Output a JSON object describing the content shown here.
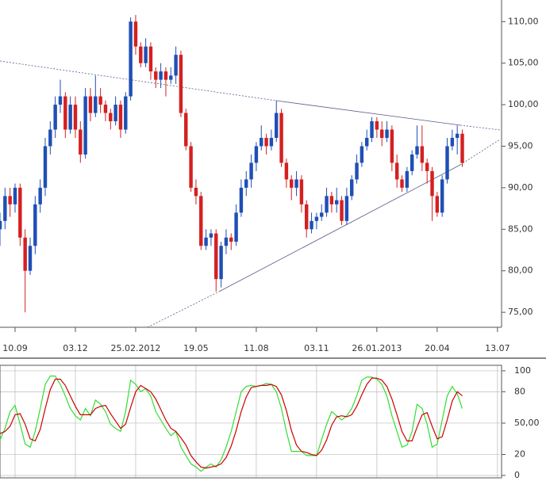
{
  "chart_data": [
    {
      "type": "candlestick",
      "up_color": "#1f4fb5",
      "down_color": "#d42020",
      "xlim": [
        0,
        99.5
      ],
      "xticks": [
        {
          "value": 3,
          "label": "10.09"
        },
        {
          "value": 15,
          "label": "03.12"
        },
        {
          "value": 27,
          "label": "25.02.2012"
        },
        {
          "value": 39,
          "label": "19.05"
        },
        {
          "value": 51,
          "label": "11.08"
        },
        {
          "value": 63,
          "label": "03.11"
        },
        {
          "value": 75,
          "label": "26.01.2013"
        },
        {
          "value": 87,
          "label": "20.04"
        },
        {
          "value": 99,
          "label": "13.07"
        }
      ],
      "ylim": [
        73.2,
        112.6
      ],
      "yticks": [
        {
          "value": 75,
          "label": "75,00"
        },
        {
          "value": 80,
          "label": "80,00"
        },
        {
          "value": 85,
          "label": "85,00"
        },
        {
          "value": 90,
          "label": "90,00"
        },
        {
          "value": 95,
          "label": "95,00"
        },
        {
          "value": 100,
          "label": "100,00"
        },
        {
          "value": 105,
          "label": "105,00"
        },
        {
          "value": 110,
          "label": "110,00"
        }
      ],
      "open": [
        85,
        86,
        89,
        88,
        90,
        84,
        80,
        83,
        88,
        90,
        95,
        97,
        100,
        101,
        97,
        100,
        97,
        94,
        101,
        99,
        101,
        100,
        99,
        98,
        100,
        97,
        101,
        110,
        107,
        105,
        107,
        104,
        103,
        104,
        103,
        103.5,
        106,
        99,
        95,
        90,
        89,
        83,
        84,
        84.5,
        79,
        83,
        84,
        83.5,
        87,
        90,
        91,
        93,
        95,
        96,
        95,
        96,
        99,
        93,
        91,
        90,
        91,
        88,
        85,
        86,
        86.5,
        87,
        89,
        88,
        88.5,
        86,
        89,
        91,
        93,
        95,
        96,
        98,
        97,
        96,
        97,
        93,
        91,
        90,
        92,
        94,
        95,
        93,
        92,
        89,
        87,
        91,
        95,
        96,
        96.5
      ],
      "high": [
        87,
        90,
        90,
        90.5,
        90.5,
        85,
        84,
        89,
        91,
        96,
        98,
        101,
        103,
        101.5,
        101,
        101,
        98,
        102,
        102,
        103.5,
        102,
        100.5,
        99.5,
        101,
        100.5,
        101.5,
        110.5,
        110.8,
        107.5,
        108,
        107.5,
        104.5,
        105,
        104.5,
        104.5,
        107,
        106.5,
        99.5,
        95.5,
        91,
        89.5,
        85,
        85,
        85,
        83.5,
        85,
        84.5,
        88,
        91,
        92,
        94,
        95.5,
        97.5,
        96.5,
        97,
        100.5,
        99.5,
        93.5,
        91.5,
        92,
        91.5,
        88.5,
        87,
        87,
        88,
        90,
        89.5,
        90,
        89,
        90,
        91.5,
        94,
        95.5,
        97,
        98.5,
        98.5,
        98,
        98,
        97.5,
        94,
        91.5,
        92.5,
        94.5,
        97.5,
        97.5,
        93.5,
        92.5,
        89.5,
        91.5,
        96,
        97,
        97.5,
        97
      ],
      "low": [
        83,
        85,
        86.5,
        87,
        83,
        75,
        79.5,
        82,
        87,
        89,
        94,
        96,
        99,
        96,
        96.5,
        96,
        93,
        93.5,
        98,
        98.5,
        99,
        98,
        97,
        97.5,
        96,
        96.5,
        100.5,
        106,
        104.5,
        104.5,
        103,
        102,
        102,
        101,
        102.5,
        102.5,
        98.5,
        94.5,
        89.5,
        88,
        82.5,
        82.5,
        83,
        77.5,
        78,
        82,
        82.5,
        83,
        86.5,
        89,
        90,
        92,
        94.5,
        94,
        94.5,
        95.5,
        92.5,
        90,
        88.5,
        89,
        87,
        84,
        84.5,
        85,
        86,
        86.5,
        87,
        87,
        85.5,
        85.5,
        88.5,
        90.5,
        92.5,
        94.5,
        95.5,
        96,
        95,
        95.5,
        92,
        90,
        89.5,
        89.5,
        91.5,
        93.5,
        92,
        90.5,
        86,
        86.5,
        86.5,
        90.5,
        94.5,
        94,
        92.5
      ],
      "close": [
        86,
        89,
        88,
        90,
        84,
        80,
        83,
        88,
        90,
        95,
        97,
        100,
        101,
        97,
        100,
        97,
        94,
        101,
        99,
        101,
        100,
        99,
        98,
        100,
        97,
        101,
        110,
        107,
        105,
        107,
        104,
        103,
        104,
        103,
        103.5,
        106,
        99,
        95,
        90,
        89,
        83,
        84,
        84.5,
        79,
        83,
        84,
        83.5,
        87,
        90,
        91,
        93,
        95,
        96,
        95,
        96,
        99,
        93,
        91,
        90,
        91,
        88,
        85,
        86,
        86.5,
        87,
        89,
        88,
        88.5,
        86,
        89,
        91,
        93,
        95,
        96,
        98,
        97,
        96,
        97,
        93,
        91,
        90,
        92,
        94,
        95,
        93,
        92,
        89,
        87,
        91,
        95,
        96,
        96.5,
        93
      ]
    },
    {
      "type": "line",
      "xlim": [
        0,
        99.5
      ],
      "ylim": [
        -2.3,
        109.8
      ],
      "yticks": [
        0,
        20,
        {
          "value": 50,
          "label": "50,00"
        },
        80,
        100
      ],
      "grid": true,
      "series": [
        {
          "color": "#33dd33",
          "values": [
            34,
            45,
            61,
            67,
            49,
            30,
            27,
            42,
            64,
            87,
            95,
            95,
            87,
            76,
            64,
            57,
            53,
            64,
            57,
            72,
            68,
            61,
            49,
            45,
            42,
            61,
            91,
            87,
            80,
            83,
            76,
            61,
            53,
            45,
            38,
            42,
            27,
            19,
            11,
            8,
            4,
            8,
            11,
            8,
            15,
            27,
            42,
            61,
            80,
            85,
            86,
            85,
            86,
            88,
            87,
            80,
            64,
            42,
            23,
            23,
            23,
            19,
            19,
            19,
            34,
            49,
            61,
            57,
            53,
            57,
            64,
            76,
            91,
            94,
            94,
            92,
            87,
            76,
            57,
            42,
            27,
            29,
            42,
            68,
            64,
            49,
            27,
            30,
            53,
            76,
            85,
            78,
            64
          ]
        },
        {
          "color": "#cc0000",
          "values": [
            40,
            42,
            47,
            58,
            59,
            49,
            35,
            33,
            44,
            64,
            82,
            92,
            92,
            86,
            76,
            66,
            58,
            58,
            58,
            64,
            66,
            67,
            59,
            52,
            45,
            49,
            65,
            80,
            86,
            83,
            80,
            73,
            63,
            53,
            45,
            42,
            36,
            29,
            19,
            13,
            8,
            7,
            8,
            9,
            11,
            17,
            28,
            43,
            61,
            75,
            84,
            85,
            86,
            86,
            87,
            85,
            77,
            62,
            43,
            29,
            23,
            22,
            20,
            19,
            24,
            34,
            48,
            56,
            57,
            56,
            58,
            66,
            77,
            87,
            93,
            93,
            91,
            85,
            73,
            58,
            42,
            33,
            33,
            46,
            58,
            60,
            47,
            35,
            37,
            53,
            71,
            80,
            76
          ]
        }
      ]
    }
  ]
}
